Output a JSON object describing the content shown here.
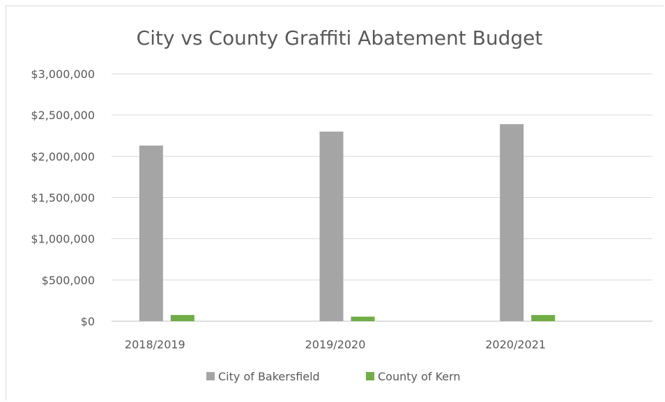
{
  "chart_data": {
    "type": "bar",
    "title": "City vs County Graffiti Abatement Budget",
    "categories": [
      "2018/2019",
      "2019/2020",
      "2020/2021"
    ],
    "series": [
      {
        "name": "City of Bakersfield",
        "values": [
          2130000,
          2300000,
          2390000
        ],
        "color": "#a5a5a5"
      },
      {
        "name": "County of Kern",
        "values": [
          75000,
          55000,
          75000
        ],
        "color": "#70ad47"
      }
    ],
    "ylim": [
      0,
      3000000
    ],
    "yticks": [
      "$0",
      "$500,000",
      "$1,000,000",
      "$1,500,000",
      "$2,000,000",
      "$2,500,000",
      "$3,000,000"
    ],
    "grid": true,
    "legend_position": "bottom"
  }
}
